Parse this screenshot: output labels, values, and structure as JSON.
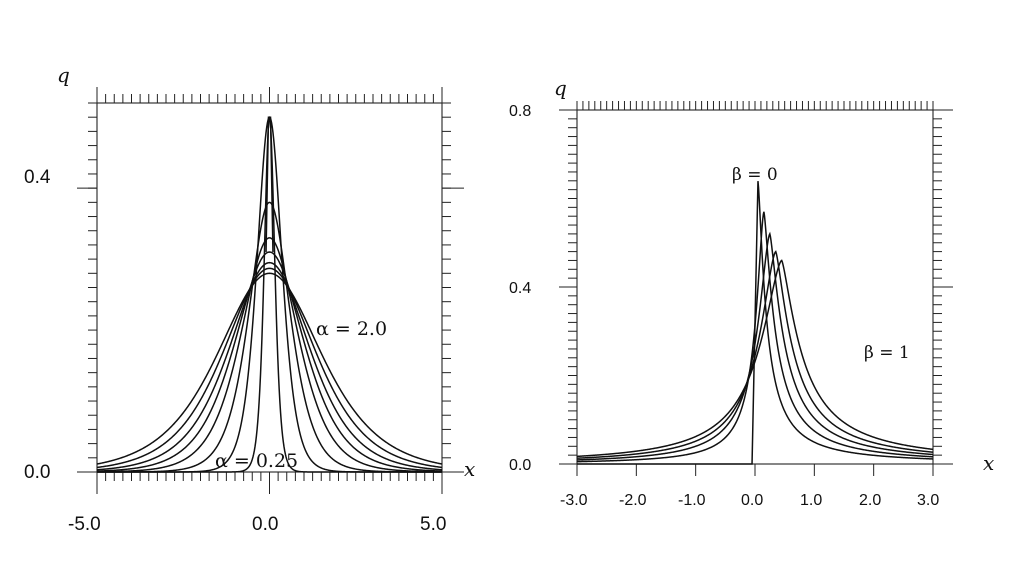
{
  "chart_data": [
    {
      "type": "line",
      "xlabel": "x",
      "ylabel": "q",
      "xlim": [
        -5.0,
        5.0
      ],
      "ylim": [
        0.0,
        0.52
      ],
      "x_tick_labels": [
        "-5.0",
        "0.0",
        "5.0"
      ],
      "y_tick_labels": [
        "0.0",
        "0.4"
      ],
      "annotations": [
        {
          "text": "α = 2.0",
          "x": 1.35,
          "y": 0.195
        },
        {
          "text": "α = 0.25",
          "x": -1.6,
          "y": 0.012
        }
      ],
      "series": [
        {
          "param": 0.25,
          "peak": 0.5,
          "width": 0.18
        },
        {
          "param": 0.5,
          "peak": 0.5,
          "width": 0.42
        },
        {
          "param": 0.75,
          "peak": 0.38,
          "width": 0.68
        },
        {
          "param": 1.0,
          "peak": 0.33,
          "width": 0.92
        },
        {
          "param": 1.25,
          "peak": 0.31,
          "width": 1.1
        },
        {
          "param": 1.5,
          "peak": 0.295,
          "width": 1.26
        },
        {
          "param": 1.75,
          "peak": 0.287,
          "width": 1.42
        },
        {
          "param": 2.0,
          "peak": 0.28,
          "width": 1.58
        }
      ]
    },
    {
      "type": "line",
      "xlabel": "x",
      "ylabel": "q",
      "xlim": [
        -3.0,
        3.0
      ],
      "ylim": [
        0.0,
        0.8
      ],
      "x_tick_labels": [
        "-3.0",
        "-2.0",
        "-1.0",
        "0.0",
        "1.0",
        "2.0",
        "3.0"
      ],
      "y_tick_labels": [
        "0.0",
        "0.4",
        "0.8"
      ],
      "annotations": [
        {
          "text": "β = 0",
          "x": 0.0,
          "y": 0.66
        },
        {
          "text": "β = 1",
          "x": 2.2,
          "y": 0.24
        }
      ],
      "series": [
        {
          "param": 0.0,
          "peak_x": 0.05,
          "peak": 0.64
        },
        {
          "param": 0.25,
          "peak_x": 0.15,
          "peak": 0.57
        },
        {
          "param": 0.5,
          "peak_x": 0.25,
          "peak": 0.52
        },
        {
          "param": 0.75,
          "peak_x": 0.35,
          "peak": 0.48
        },
        {
          "param": 1.0,
          "peak_x": 0.45,
          "peak": 0.46
        }
      ]
    }
  ]
}
